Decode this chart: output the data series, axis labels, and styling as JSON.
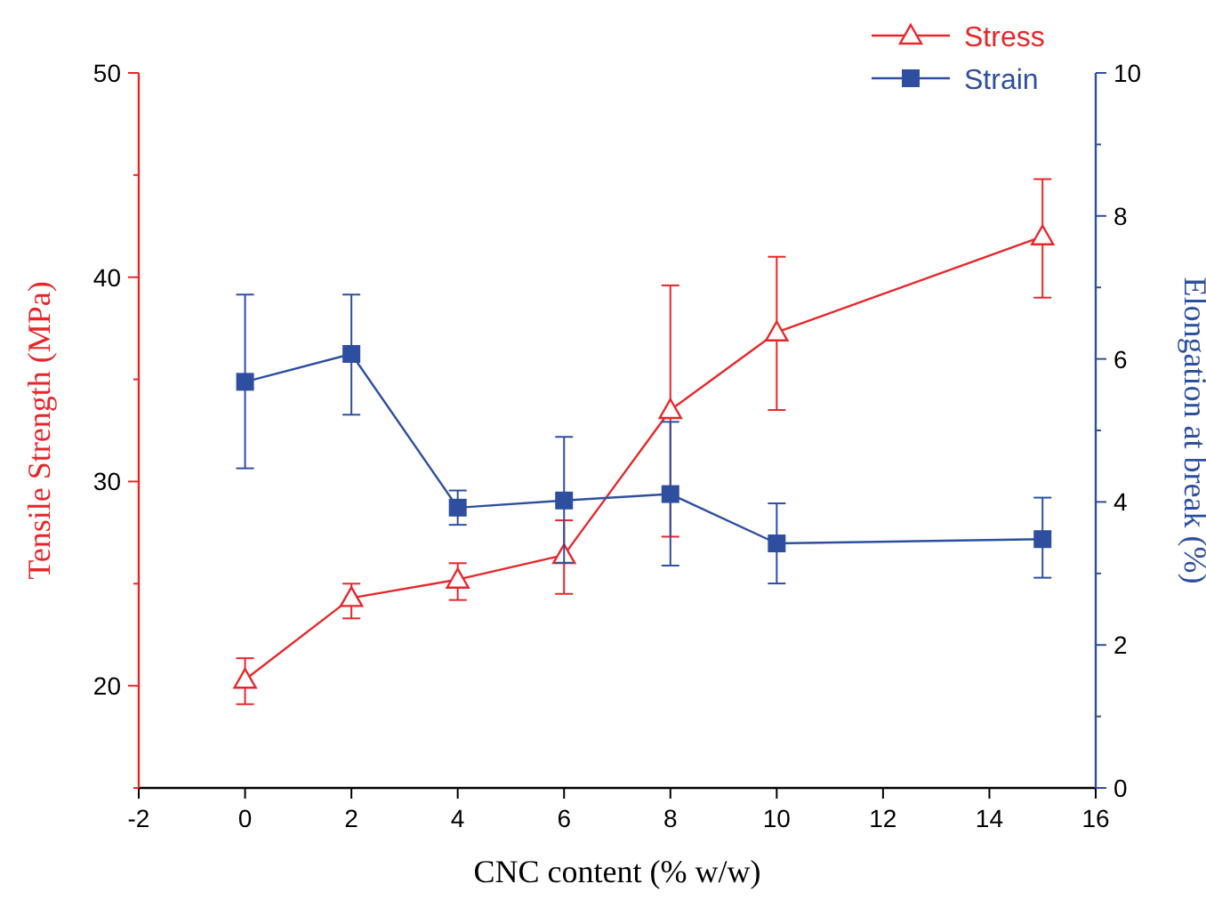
{
  "chart_data": {
    "type": "line",
    "xlabel": "CNC content (% w/w)",
    "ylabel": "Tensile Strength (MPa)",
    "y2label": "Elongation at break (%)",
    "x": [
      0,
      2,
      4,
      6,
      8,
      10,
      15
    ],
    "xlim": [
      -2,
      16
    ],
    "xticks": [
      -2,
      0,
      2,
      4,
      6,
      8,
      10,
      12,
      14,
      16
    ],
    "ylim": [
      15,
      50
    ],
    "yticks": [
      {
        "value": 15,
        "label": null
      },
      20,
      {
        "value": 25,
        "label": null
      },
      30,
      {
        "value": 35,
        "label": null
      },
      40,
      {
        "value": 45,
        "label": null
      },
      50
    ],
    "y2lim": [
      0,
      10
    ],
    "y2ticks": [
      0,
      {
        "value": 1,
        "label": null
      },
      2,
      {
        "value": 3,
        "label": null
      },
      4,
      {
        "value": 5,
        "label": null
      },
      6,
      {
        "value": 7,
        "label": null
      },
      8,
      {
        "value": 9,
        "label": null
      },
      10
    ],
    "legend": "top right",
    "grid": false,
    "series": [
      {
        "name": "Stress",
        "color": "#e8262a",
        "marker": "triangle",
        "values": [
          20.3,
          24.3,
          25.2,
          26.4,
          33.5,
          37.3,
          42.0
        ],
        "errors": [
          [
            19.1,
            21.35
          ],
          [
            23.3,
            25.0
          ],
          [
            24.2,
            26.0
          ],
          [
            24.5,
            28.1
          ],
          [
            27.3,
            39.6
          ],
          [
            33.5,
            41.0
          ],
          [
            39.0,
            44.8
          ]
        ]
      },
      {
        "name": "Strain",
        "color": "#2e4fa0",
        "marker": "square",
        "axis": "y2",
        "values": [
          5.68,
          6.07,
          3.92,
          4.02,
          4.11,
          3.42,
          3.48
        ],
        "errors": [
          [
            4.47,
            6.9
          ],
          [
            5.22,
            6.9
          ],
          [
            3.68,
            4.16
          ],
          [
            3.15,
            4.91
          ],
          [
            3.11,
            5.12
          ],
          [
            2.86,
            3.98
          ],
          [
            2.94,
            4.06
          ]
        ]
      }
    ]
  }
}
